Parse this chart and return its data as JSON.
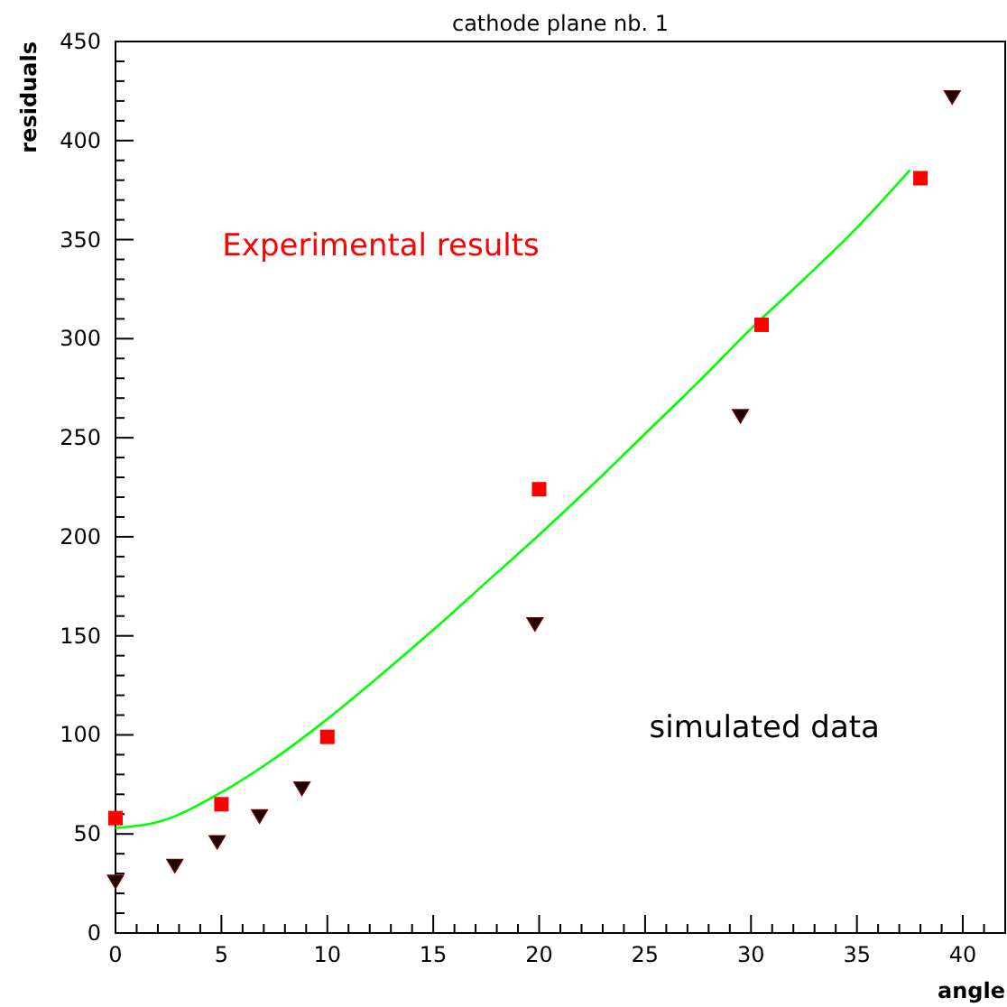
{
  "chart_data": {
    "type": "scatter",
    "title": "cathode plane nb. 1",
    "xlabel": "angle",
    "ylabel": "residuals",
    "xlim": [
      0,
      42
    ],
    "ylim": [
      0,
      450
    ],
    "xticks": [
      0,
      {
        "value": 1,
        "label": null
      },
      {
        "value": 2,
        "label": null
      },
      {
        "value": 3,
        "label": null
      },
      {
        "value": 4,
        "label": null
      },
      5,
      {
        "value": 6,
        "label": null
      },
      {
        "value": 7,
        "label": null
      },
      {
        "value": 8,
        "label": null
      },
      {
        "value": 9,
        "label": null
      },
      10,
      {
        "value": 11,
        "label": null
      },
      {
        "value": 12,
        "label": null
      },
      {
        "value": 13,
        "label": null
      },
      {
        "value": 14,
        "label": null
      },
      15,
      {
        "value": 16,
        "label": null
      },
      {
        "value": 17,
        "label": null
      },
      {
        "value": 18,
        "label": null
      },
      {
        "value": 19,
        "label": null
      },
      20,
      {
        "value": 21,
        "label": null
      },
      {
        "value": 22,
        "label": null
      },
      {
        "value": 23,
        "label": null
      },
      {
        "value": 24,
        "label": null
      },
      25,
      {
        "value": 26,
        "label": null
      },
      {
        "value": 27,
        "label": null
      },
      {
        "value": 28,
        "label": null
      },
      {
        "value": 29,
        "label": null
      },
      30,
      {
        "value": 31,
        "label": null
      },
      {
        "value": 32,
        "label": null
      },
      {
        "value": 33,
        "label": null
      },
      {
        "value": 34,
        "label": null
      },
      35,
      {
        "value": 36,
        "label": null
      },
      {
        "value": 37,
        "label": null
      },
      {
        "value": 38,
        "label": null
      },
      {
        "value": 39,
        "label": null
      },
      40,
      {
        "value": 41,
        "label": null
      }
    ],
    "yticks": [
      0,
      {
        "value": 10,
        "label": null
      },
      {
        "value": 20,
        "label": null
      },
      {
        "value": 30,
        "label": null
      },
      {
        "value": 40,
        "label": null
      },
      50,
      {
        "value": 60,
        "label": null
      },
      {
        "value": 70,
        "label": null
      },
      {
        "value": 80,
        "label": null
      },
      {
        "value": 90,
        "label": null
      },
      100,
      {
        "value": 110,
        "label": null
      },
      {
        "value": 120,
        "label": null
      },
      {
        "value": 130,
        "label": null
      },
      {
        "value": 140,
        "label": null
      },
      150,
      {
        "value": 160,
        "label": null
      },
      {
        "value": 170,
        "label": null
      },
      {
        "value": 180,
        "label": null
      },
      {
        "value": 190,
        "label": null
      },
      200,
      {
        "value": 210,
        "label": null
      },
      {
        "value": 220,
        "label": null
      },
      {
        "value": 230,
        "label": null
      },
      {
        "value": 240,
        "label": null
      },
      250,
      {
        "value": 260,
        "label": null
      },
      {
        "value": 270,
        "label": null
      },
      {
        "value": 280,
        "label": null
      },
      {
        "value": 290,
        "label": null
      },
      300,
      {
        "value": 310,
        "label": null
      },
      {
        "value": 320,
        "label": null
      },
      {
        "value": 330,
        "label": null
      },
      {
        "value": 340,
        "label": null
      },
      350,
      {
        "value": 360,
        "label": null
      },
      {
        "value": 370,
        "label": null
      },
      {
        "value": 380,
        "label": null
      },
      {
        "value": 390,
        "label": null
      },
      400,
      {
        "value": 410,
        "label": null
      },
      {
        "value": 420,
        "label": null
      },
      {
        "value": 430,
        "label": null
      },
      {
        "value": 440,
        "label": null
      },
      450
    ],
    "grid": false,
    "series": [
      {
        "type": "line",
        "color": "#00ff00",
        "marker": "none",
        "line_style": "solid",
        "x": [
          0,
          2,
          5,
          7.5,
          10,
          12.5,
          15,
          17.5,
          20,
          22.5,
          25,
          27.5,
          30,
          32.5,
          35,
          37.5
        ],
        "values": [
          53,
          56,
          71,
          88,
          108,
          130,
          153,
          177,
          201,
          226,
          252,
          278,
          305,
          330,
          356,
          385
        ]
      },
      {
        "name": "Experimental results",
        "type": "scatter",
        "color": "#ff0000",
        "marker": "square",
        "x": [
          0,
          5,
          10,
          20,
          30.5,
          38
        ],
        "values": [
          58,
          65,
          99,
          224,
          307,
          381
        ]
      },
      {
        "name": "simulated data",
        "type": "scatter",
        "color": "#1a0000",
        "marker": "triangle",
        "x": [
          0,
          2.8,
          4.8,
          6.8,
          8.8,
          19.8,
          29.5,
          39.5
        ],
        "values": [
          26,
          34,
          46,
          59,
          73,
          156,
          261,
          422
        ]
      }
    ]
  }
}
